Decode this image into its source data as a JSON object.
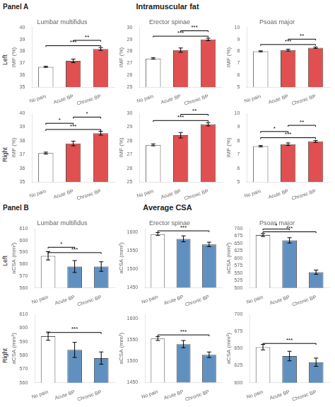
{
  "panels": [
    {
      "label": "Panel A",
      "title": "Intramuscular fat"
    },
    {
      "label": "Panel B",
      "title": "Average CSA"
    }
  ],
  "row_labels": [
    "Left",
    "Right",
    "Left",
    "Right"
  ],
  "chart_data": [
    {
      "type": "bar",
      "title": "Lumbar multifidus",
      "ylabel": "IMF (%)",
      "categories": [
        "No pain",
        "Acute BP",
        "Chronic BP"
      ],
      "values": [
        36.7,
        37.2,
        38.2
      ],
      "errors": [
        0.05,
        0.15,
        0.12
      ],
      "colors": [
        "#ffffff",
        "#e05050",
        "#e05050"
      ],
      "ylim": [
        35,
        40
      ],
      "yticks": [
        35,
        36,
        37,
        38,
        39,
        40
      ],
      "grid": false,
      "annotations": [
        {
          "text": "***",
          "from": "No pain",
          "to": "Chronic BP"
        },
        {
          "text": "**",
          "from": "Acute BP",
          "to": "Chronic BP"
        }
      ]
    },
    {
      "type": "bar",
      "title": "Erector spinae",
      "ylabel": "IMF (%)",
      "categories": [
        "No pain",
        "Acute BP",
        "Chronic BP"
      ],
      "values": [
        27.4,
        28.1,
        29.0
      ],
      "errors": [
        0.06,
        0.18,
        0.1
      ],
      "colors": [
        "#ffffff",
        "#e05050",
        "#e05050"
      ],
      "ylim": [
        25,
        30
      ],
      "yticks": [
        25,
        26,
        27,
        28,
        29,
        30
      ],
      "grid": false,
      "annotations": [
        {
          "text": "***",
          "from": "No pain",
          "to": "Chronic BP"
        },
        {
          "text": "***",
          "from": "Acute BP",
          "to": "Chronic BP"
        }
      ]
    },
    {
      "type": "bar",
      "title": "Psoas major",
      "ylabel": "IMF (%)",
      "categories": [
        "No pain",
        "Acute BP",
        "Chronic BP"
      ],
      "values": [
        8.0,
        8.1,
        8.3
      ],
      "errors": [
        0.04,
        0.08,
        0.06
      ],
      "colors": [
        "#ffffff",
        "#e05050",
        "#e05050"
      ],
      "ylim": [
        5,
        10
      ],
      "yticks": [
        5,
        6,
        7,
        8,
        9,
        10
      ],
      "grid": false,
      "annotations": [
        {
          "text": "***",
          "from": "No pain",
          "to": "Chronic BP"
        },
        {
          "text": "**",
          "from": "Acute BP",
          "to": "Chronic BP"
        }
      ]
    },
    {
      "type": "bar",
      "ylabel": "IMF (%)",
      "categories": [
        "No pain",
        "Acute BP",
        "Chronic BP"
      ],
      "values": [
        37.1,
        37.8,
        38.55
      ],
      "errors": [
        0.07,
        0.17,
        0.14
      ],
      "colors": [
        "#ffffff",
        "#e05050",
        "#e05050"
      ],
      "ylim": [
        35,
        40
      ],
      "yticks": [
        35,
        36,
        37,
        38,
        39,
        40
      ],
      "grid": false,
      "annotations": [
        {
          "text": "***",
          "from": "No pain",
          "to": "Chronic BP"
        },
        {
          "text": "*",
          "from": "No pain",
          "to": "Acute BP"
        },
        {
          "text": "*",
          "from": "Acute BP",
          "to": "Chronic BP"
        }
      ]
    },
    {
      "type": "bar",
      "ylabel": "IMF (%)",
      "categories": [
        "No pain",
        "Acute BP",
        "Chronic BP"
      ],
      "values": [
        27.7,
        28.4,
        29.2
      ],
      "errors": [
        0.07,
        0.2,
        0.12
      ],
      "colors": [
        "#ffffff",
        "#e05050",
        "#e05050"
      ],
      "ylim": [
        25,
        30
      ],
      "yticks": [
        25,
        26,
        27,
        28,
        29,
        30
      ],
      "grid": false,
      "annotations": [
        {
          "text": "***",
          "from": "No pain",
          "to": "Chronic BP"
        },
        {
          "text": "**",
          "from": "Acute BP",
          "to": "Chronic BP"
        }
      ]
    },
    {
      "type": "bar",
      "ylabel": "IMF (%)",
      "categories": [
        "No pain",
        "Acute BP",
        "Chronic BP"
      ],
      "values": [
        7.6,
        7.75,
        7.95
      ],
      "errors": [
        0.05,
        0.09,
        0.07
      ],
      "colors": [
        "#ffffff",
        "#e05050",
        "#e05050"
      ],
      "ylim": [
        5,
        10
      ],
      "yticks": [
        5,
        6,
        7,
        8,
        9,
        10
      ],
      "grid": false,
      "annotations": [
        {
          "text": "***",
          "from": "No pain",
          "to": "Chronic BP"
        },
        {
          "text": "*",
          "from": "No pain",
          "to": "Acute BP"
        },
        {
          "text": "**",
          "from": "Acute BP",
          "to": "Chronic BP"
        }
      ]
    },
    {
      "type": "bar",
      "title": "Lumbar multifidus",
      "ylabel": "aCSA (mm²)",
      "categories": [
        "No pain",
        "Acute BP",
        "Chronic BP"
      ],
      "values": [
        587,
        578,
        578
      ],
      "errors": [
        3.5,
        5.0,
        4.0
      ],
      "colors": [
        "#ffffff",
        "#6090c0",
        "#6090c0"
      ],
      "ylim": [
        560,
        610
      ],
      "yticks": [
        560,
        570,
        580,
        590,
        600,
        610
      ],
      "grid": false,
      "annotations": [
        {
          "text": "***",
          "from": "No pain",
          "to": "Chronic BP"
        },
        {
          "text": "*",
          "from": "No pain",
          "to": "Acute BP"
        }
      ]
    },
    {
      "type": "bar",
      "title": "Erector spinae",
      "ylabel": "aCSA (mm²)",
      "categories": [
        "No pain",
        "Acute BP",
        "Chronic BP"
      ],
      "values": [
        1595,
        1582,
        1567
      ],
      "errors": [
        4.0,
        8.0,
        6.0
      ],
      "colors": [
        "#ffffff",
        "#6090c0",
        "#6090c0"
      ],
      "ylim": [
        1450,
        1610
      ],
      "yticks": [
        1450,
        1500,
        1550,
        1600
      ],
      "grid": false,
      "annotations": [
        {
          "text": "***",
          "from": "No pain",
          "to": "Chronic BP"
        }
      ]
    },
    {
      "type": "bar",
      "title": "Psoas major",
      "ylabel": "aCSA (mm²)",
      "categories": [
        "No pain",
        "Acute BP",
        "Chronic BP"
      ],
      "values": [
        678,
        660,
        553
      ],
      "errors": [
        5.0,
        9.0,
        7.0
      ],
      "colors": [
        "#ffffff",
        "#6090c0",
        "#6090c0"
      ],
      "ylim": [
        500,
        700
      ],
      "yticks": [
        500,
        525,
        550,
        575,
        600,
        625,
        650,
        675,
        700
      ],
      "grid": false,
      "annotations": [
        {
          "text": "***",
          "from": "No pain",
          "to": "Chronic BP"
        },
        {
          "text": "*",
          "from": "No pain",
          "to": "Acute BP"
        }
      ]
    },
    {
      "type": "bar",
      "ylabel": "aCSA (mm²)",
      "categories": [
        "No pain",
        "Acute BP",
        "Chronic BP"
      ],
      "values": [
        594,
        584,
        578
      ],
      "errors": [
        3.0,
        5.5,
        4.5
      ],
      "colors": [
        "#ffffff",
        "#6090c0",
        "#6090c0"
      ],
      "ylim": [
        560,
        610
      ],
      "yticks": [
        560,
        570,
        580,
        590,
        600,
        610
      ],
      "grid": false,
      "annotations": [
        {
          "text": "***",
          "from": "No pain",
          "to": "Chronic BP"
        }
      ]
    },
    {
      "type": "bar",
      "ylabel": "aCSA (mm²)",
      "categories": [
        "No pain",
        "Acute BP",
        "Chronic BP"
      ],
      "values": [
        1553,
        1540,
        1515
      ],
      "errors": [
        4.5,
        8.5,
        6.5
      ],
      "colors": [
        "#ffffff",
        "#6090c0",
        "#6090c0"
      ],
      "ylim": [
        1450,
        1610
      ],
      "yticks": [
        1450,
        1500,
        1550,
        1600
      ],
      "grid": false,
      "annotations": [
        {
          "text": "***",
          "from": "No pain",
          "to": "Chronic BP"
        }
      ]
    },
    {
      "type": "bar",
      "ylabel": "aCSA (mm²)",
      "categories": [
        "No pain",
        "Acute BP",
        "Chronic BP"
      ],
      "values": [
        652,
        639,
        630
      ],
      "errors": [
        4.0,
        7.0,
        6.0
      ],
      "colors": [
        "#ffffff",
        "#6090c0",
        "#6090c0"
      ],
      "ylim": [
        600,
        700
      ],
      "yticks": [
        600,
        625,
        650,
        675,
        700
      ],
      "grid": false,
      "annotations": [
        {
          "text": "***",
          "from": "No pain",
          "to": "Chronic BP"
        }
      ]
    }
  ]
}
